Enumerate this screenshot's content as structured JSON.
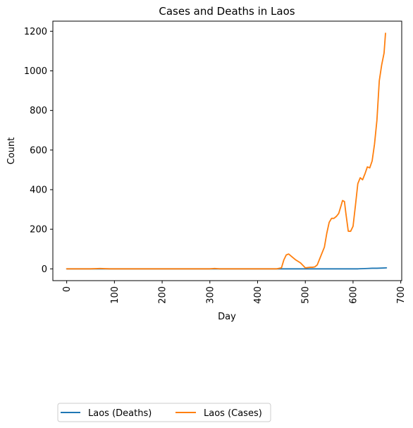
{
  "chart_data": {
    "type": "line",
    "title": "Cases and Deaths in Laos",
    "xlabel": "Day",
    "ylabel": "Count",
    "xlim": [
      -29,
      702
    ],
    "ylim": [
      -59.5,
      1251
    ],
    "xticks": [
      0,
      100,
      200,
      300,
      400,
      500,
      600,
      700
    ],
    "yticks": [
      0,
      200,
      400,
      600,
      800,
      1000,
      1200
    ],
    "grid": false,
    "legend_position": "bottom-left, below the plot",
    "series": [
      {
        "name": "Laos (Deaths)",
        "color": "#1f77b4",
        "x": [
          0,
          100,
          200,
          300,
          400,
          450,
          500,
          550,
          590,
          600,
          610,
          620,
          630,
          640,
          650,
          660,
          670
        ],
        "y": [
          0,
          0,
          0,
          0,
          0,
          0,
          0,
          0,
          0,
          0,
          0,
          1,
          2,
          3,
          3,
          4,
          5
        ]
      },
      {
        "name": "Laos (Cases)",
        "color": "#ff7f0e",
        "x": [
          0,
          50,
          70,
          90,
          100,
          200,
          300,
          310,
          320,
          400,
          440,
          450,
          455,
          460,
          465,
          470,
          480,
          490,
          500,
          510,
          515,
          520,
          525,
          530,
          540,
          545,
          550,
          555,
          560,
          565,
          570,
          575,
          578,
          582,
          585,
          590,
          595,
          600,
          605,
          610,
          615,
          620,
          625,
          630,
          635,
          640,
          645,
          650,
          655,
          660,
          665,
          668
        ],
        "y": [
          0,
          0,
          2,
          0,
          0,
          0,
          0,
          2,
          0,
          0,
          0,
          5,
          45,
          70,
          75,
          65,
          45,
          30,
          5,
          8,
          8,
          10,
          20,
          50,
          110,
          180,
          235,
          255,
          255,
          265,
          280,
          320,
          345,
          340,
          280,
          190,
          190,
          215,
          320,
          430,
          460,
          450,
          480,
          515,
          510,
          545,
          630,
          750,
          950,
          1030,
          1090,
          1190
        ]
      }
    ]
  }
}
